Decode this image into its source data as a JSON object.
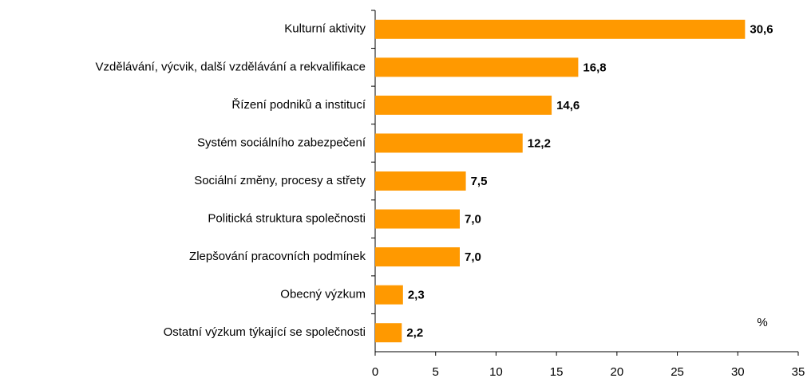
{
  "chart_data": {
    "type": "barh",
    "categories": [
      "Kulturní aktivity",
      "Vzdělávání, výcvik, další vzdělávání a rekvalifikace",
      "Řízení podniků a institucí",
      "Systém sociálního zabezpečení",
      "Sociální změny, procesy a střety",
      "Politická struktura společnosti",
      "Zlepšování pracovních podmínek",
      "Obecný výzkum",
      "Ostatní výzkum týkající se společnosti"
    ],
    "values": [
      30.6,
      16.8,
      14.6,
      12.2,
      7.5,
      7.0,
      7.0,
      2.3,
      2.2
    ],
    "value_labels": [
      "30,6",
      "16,8",
      "14,6",
      "12,2",
      "7,5",
      "7,0",
      "7,0",
      "2,3",
      "2,2"
    ],
    "color": "#ff9900",
    "xlim": [
      0,
      35
    ],
    "xticks": [
      0,
      5,
      10,
      15,
      20,
      25,
      30,
      35
    ],
    "annotation": "%"
  }
}
